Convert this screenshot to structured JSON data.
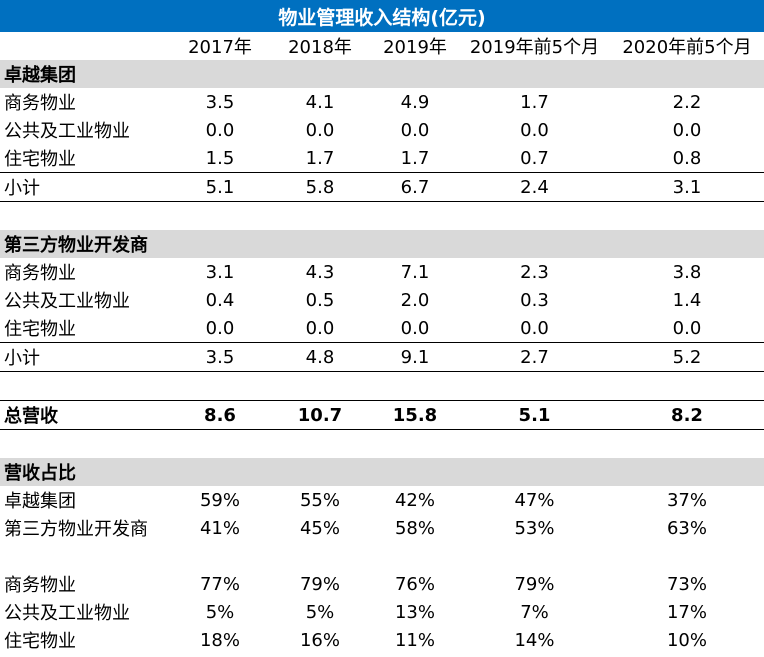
{
  "title": "物业管理收入结构(亿元)",
  "columns": [
    "2017年",
    "2018年",
    "2019年",
    "2019年前5个月",
    "2020年前5个月"
  ],
  "sections": {
    "zhuoyue": {
      "title": "卓越集团",
      "rows": [
        {
          "label": "商务物业",
          "values": [
            "3.5",
            "4.1",
            "4.9",
            "1.7",
            "2.2"
          ]
        },
        {
          "label": "公共及工业物业",
          "values": [
            "0.0",
            "0.0",
            "0.0",
            "0.0",
            "0.0"
          ]
        },
        {
          "label": "住宅物业",
          "values": [
            "1.5",
            "1.7",
            "1.7",
            "0.7",
            "0.8"
          ]
        }
      ],
      "subtotal": {
        "label": "小计",
        "values": [
          "5.1",
          "5.8",
          "6.7",
          "2.4",
          "3.1"
        ]
      }
    },
    "third": {
      "title": "第三方物业开发商",
      "rows": [
        {
          "label": "商务物业",
          "values": [
            "3.1",
            "4.3",
            "7.1",
            "2.3",
            "3.8"
          ]
        },
        {
          "label": "公共及工业物业",
          "values": [
            "0.4",
            "0.5",
            "2.0",
            "0.3",
            "1.4"
          ]
        },
        {
          "label": "住宅物业",
          "values": [
            "0.0",
            "0.0",
            "0.0",
            "0.0",
            "0.0"
          ]
        }
      ],
      "subtotal": {
        "label": "小计",
        "values": [
          "3.5",
          "4.8",
          "9.1",
          "2.7",
          "5.2"
        ]
      }
    }
  },
  "total": {
    "label": "总营收",
    "values": [
      "8.6",
      "10.7",
      "15.8",
      "5.1",
      "8.2"
    ]
  },
  "share": {
    "title": "营收占比",
    "by_source": [
      {
        "label": "卓越集团",
        "values": [
          "59%",
          "55%",
          "42%",
          "47%",
          "37%"
        ]
      },
      {
        "label": "第三方物业开发商",
        "values": [
          "41%",
          "45%",
          "58%",
          "53%",
          "63%"
        ]
      }
    ],
    "by_type": [
      {
        "label": "商务物业",
        "values": [
          "77%",
          "79%",
          "76%",
          "79%",
          "73%"
        ]
      },
      {
        "label": "公共及工业物业",
        "values": [
          "5%",
          "5%",
          "13%",
          "7%",
          "17%"
        ]
      },
      {
        "label": "住宅物业",
        "values": [
          "18%",
          "16%",
          "11%",
          "14%",
          "10%"
        ]
      }
    ]
  }
}
